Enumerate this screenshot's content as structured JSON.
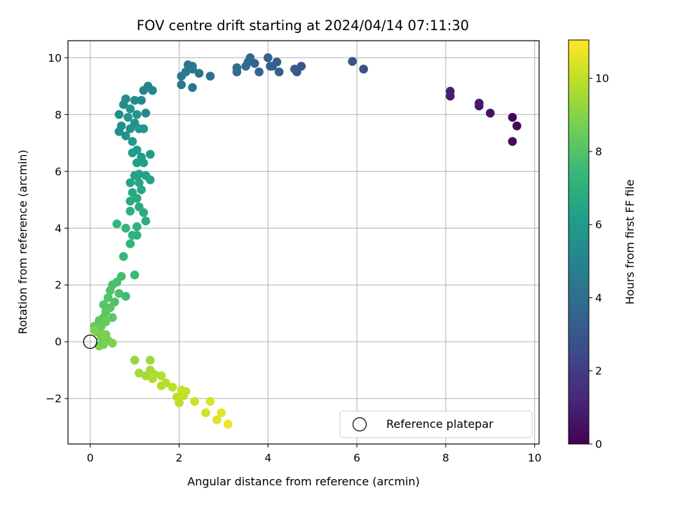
{
  "chart_data": {
    "type": "scatter",
    "title": "FOV centre drift starting at 2024/04/14 07:11:30",
    "xlabel": "Angular distance from reference (arcmin)",
    "ylabel": "Rotation from reference (arcmin)",
    "xlim": [
      -0.5,
      10.1
    ],
    "ylim": [
      -3.6,
      10.6
    ],
    "xticks": [
      0,
      2,
      4,
      6,
      8,
      10
    ],
    "yticks": [
      -2,
      0,
      2,
      4,
      6,
      8,
      10
    ],
    "xtick_labels": [
      "0",
      "2",
      "4",
      "6",
      "8",
      "10"
    ],
    "ytick_labels": [
      "−2",
      "0",
      "2",
      "4",
      "6",
      "8",
      "10"
    ],
    "grid": true,
    "legend": {
      "position": "lower-right",
      "entries": [
        "Reference platepar"
      ]
    },
    "reference_point": {
      "x": 0,
      "y": 0,
      "style": "open-circle",
      "color": "#000000"
    },
    "colorbar": {
      "label": "Hours from first FF file",
      "range": [
        0,
        11.05
      ],
      "ticks": [
        0,
        2,
        4,
        6,
        8,
        10
      ],
      "tick_labels": [
        "0",
        "2",
        "4",
        "6",
        "8",
        "10"
      ],
      "colormap": "viridis",
      "stops": [
        "#440154",
        "#482878",
        "#3e4989",
        "#31688e",
        "#26828e",
        "#1f9e89",
        "#35b779",
        "#6ece58",
        "#b5de2b",
        "#fde725"
      ]
    },
    "series": [
      {
        "points": [
          [
            9.5,
            7.9,
            0.1
          ],
          [
            9.6,
            7.6,
            0.2
          ],
          [
            9.5,
            7.05,
            0.3
          ],
          [
            9.0,
            8.05,
            0.5
          ],
          [
            8.75,
            8.3,
            0.7
          ],
          [
            8.75,
            8.4,
            0.8
          ],
          [
            8.1,
            8.65,
            0.9
          ],
          [
            8.1,
            8.82,
            1.0
          ],
          [
            6.15,
            9.6,
            2.7
          ],
          [
            5.9,
            9.87,
            2.8
          ],
          [
            4.75,
            9.7,
            3.0
          ],
          [
            4.65,
            9.5,
            3.1
          ],
          [
            4.6,
            9.6,
            3.2
          ],
          [
            4.25,
            9.5,
            3.3
          ],
          [
            4.2,
            9.85,
            3.35
          ],
          [
            4.05,
            9.7,
            3.4
          ],
          [
            4.0,
            10.0,
            3.45
          ],
          [
            4.1,
            9.7,
            3.5
          ],
          [
            3.8,
            9.5,
            3.6
          ],
          [
            3.7,
            9.8,
            3.65
          ],
          [
            3.6,
            10.0,
            3.7
          ],
          [
            3.55,
            9.85,
            3.75
          ],
          [
            3.5,
            9.7,
            3.8
          ],
          [
            3.3,
            9.5,
            3.85
          ],
          [
            3.3,
            9.65,
            3.9
          ],
          [
            2.7,
            9.35,
            4.1
          ],
          [
            2.45,
            9.45,
            4.2
          ],
          [
            2.3,
            9.6,
            4.25
          ],
          [
            2.2,
            9.75,
            4.3
          ],
          [
            2.3,
            8.95,
            4.35
          ],
          [
            2.05,
            9.05,
            4.4
          ],
          [
            2.05,
            9.35,
            4.45
          ],
          [
            2.15,
            9.5,
            4.5
          ],
          [
            2.3,
            9.7,
            4.55
          ],
          [
            1.3,
            9.0,
            5.0
          ],
          [
            1.4,
            8.85,
            5.05
          ],
          [
            1.2,
            8.85,
            5.1
          ],
          [
            1.25,
            8.05,
            5.15
          ],
          [
            1.15,
            8.5,
            5.2
          ],
          [
            1.0,
            8.5,
            5.25
          ],
          [
            0.8,
            8.55,
            5.3
          ],
          [
            0.75,
            8.35,
            5.35
          ],
          [
            0.65,
            8.0,
            5.4
          ],
          [
            0.7,
            7.6,
            5.45
          ],
          [
            0.65,
            7.4,
            5.5
          ],
          [
            0.8,
            7.25,
            5.55
          ],
          [
            0.9,
            7.5,
            5.6
          ],
          [
            1.0,
            7.7,
            5.65
          ],
          [
            1.2,
            7.5,
            5.7
          ],
          [
            1.05,
            8.0,
            5.75
          ],
          [
            0.9,
            8.2,
            5.8
          ],
          [
            0.85,
            7.9,
            5.85
          ],
          [
            1.1,
            7.5,
            5.9
          ],
          [
            0.95,
            7.05,
            5.95
          ],
          [
            1.05,
            6.75,
            6.0
          ],
          [
            1.35,
            6.6,
            6.05
          ],
          [
            1.15,
            6.5,
            6.1
          ],
          [
            0.95,
            6.65,
            6.15
          ],
          [
            1.05,
            6.3,
            6.2
          ],
          [
            1.2,
            6.3,
            6.25
          ],
          [
            1.0,
            5.85,
            6.3
          ],
          [
            1.25,
            5.85,
            6.35
          ],
          [
            1.1,
            5.9,
            6.4
          ],
          [
            1.35,
            5.7,
            6.45
          ],
          [
            0.9,
            5.6,
            6.5
          ],
          [
            1.1,
            5.6,
            6.55
          ],
          [
            1.15,
            5.35,
            6.6
          ],
          [
            0.95,
            5.25,
            6.65
          ],
          [
            1.05,
            5.05,
            6.7
          ],
          [
            0.9,
            4.95,
            6.75
          ],
          [
            1.1,
            4.75,
            6.8
          ],
          [
            1.2,
            4.55,
            6.85
          ],
          [
            1.25,
            4.25,
            6.9
          ],
          [
            0.9,
            4.6,
            6.95
          ],
          [
            1.05,
            4.05,
            7.0
          ],
          [
            1.05,
            3.75,
            7.1
          ],
          [
            0.95,
            3.75,
            7.15
          ],
          [
            0.9,
            3.45,
            7.2
          ],
          [
            0.8,
            4.0,
            7.25
          ],
          [
            0.6,
            4.15,
            7.3
          ],
          [
            0.75,
            3.0,
            7.4
          ],
          [
            1.0,
            2.35,
            7.5
          ],
          [
            0.8,
            1.6,
            7.6
          ],
          [
            0.7,
            2.3,
            7.7
          ],
          [
            0.6,
            2.1,
            7.75
          ],
          [
            0.5,
            2.0,
            7.8
          ],
          [
            0.65,
            1.7,
            7.85
          ],
          [
            0.45,
            1.8,
            7.9
          ],
          [
            0.55,
            1.4,
            7.95
          ],
          [
            0.4,
            1.55,
            8.0
          ],
          [
            0.3,
            1.3,
            8.05
          ],
          [
            0.45,
            1.2,
            8.1
          ],
          [
            0.35,
            1.05,
            8.15
          ],
          [
            0.5,
            0.85,
            8.2
          ],
          [
            0.3,
            0.85,
            8.25
          ],
          [
            0.2,
            0.75,
            8.3
          ],
          [
            0.1,
            0.55,
            8.35
          ],
          [
            0.25,
            0.55,
            8.4
          ],
          [
            0.35,
            0.7,
            8.45
          ],
          [
            0.15,
            0.35,
            8.5
          ],
          [
            0.25,
            0.15,
            8.55
          ],
          [
            0.35,
            0.25,
            8.6
          ],
          [
            0.4,
            0.05,
            8.65
          ],
          [
            0.3,
            -0.1,
            8.7
          ],
          [
            0.2,
            -0.15,
            8.75
          ],
          [
            0.5,
            -0.05,
            8.8
          ],
          [
            0.3,
            0.25,
            8.85
          ],
          [
            0.1,
            0.4,
            8.9
          ],
          [
            1.0,
            -0.65,
            9.3
          ],
          [
            1.35,
            -0.65,
            9.4
          ],
          [
            1.1,
            -1.1,
            9.5
          ],
          [
            1.25,
            -1.2,
            9.55
          ],
          [
            1.35,
            -1.0,
            9.6
          ],
          [
            1.45,
            -1.15,
            9.65
          ],
          [
            1.4,
            -1.3,
            9.7
          ],
          [
            1.6,
            -1.2,
            9.75
          ],
          [
            1.6,
            -1.55,
            9.8
          ],
          [
            1.7,
            -1.45,
            9.85
          ],
          [
            1.85,
            -1.6,
            9.9
          ],
          [
            1.95,
            -1.95,
            9.95
          ],
          [
            2.0,
            -2.15,
            10.0
          ],
          [
            2.1,
            -1.9,
            10.05
          ],
          [
            2.15,
            -1.75,
            10.1
          ],
          [
            2.05,
            -1.7,
            10.15
          ],
          [
            2.35,
            -2.1,
            10.2
          ],
          [
            2.6,
            -2.5,
            10.3
          ],
          [
            2.7,
            -2.1,
            10.4
          ],
          [
            2.85,
            -2.75,
            10.5
          ],
          [
            2.95,
            -2.5,
            10.6
          ],
          [
            3.1,
            -2.9,
            10.8
          ]
        ]
      }
    ]
  }
}
